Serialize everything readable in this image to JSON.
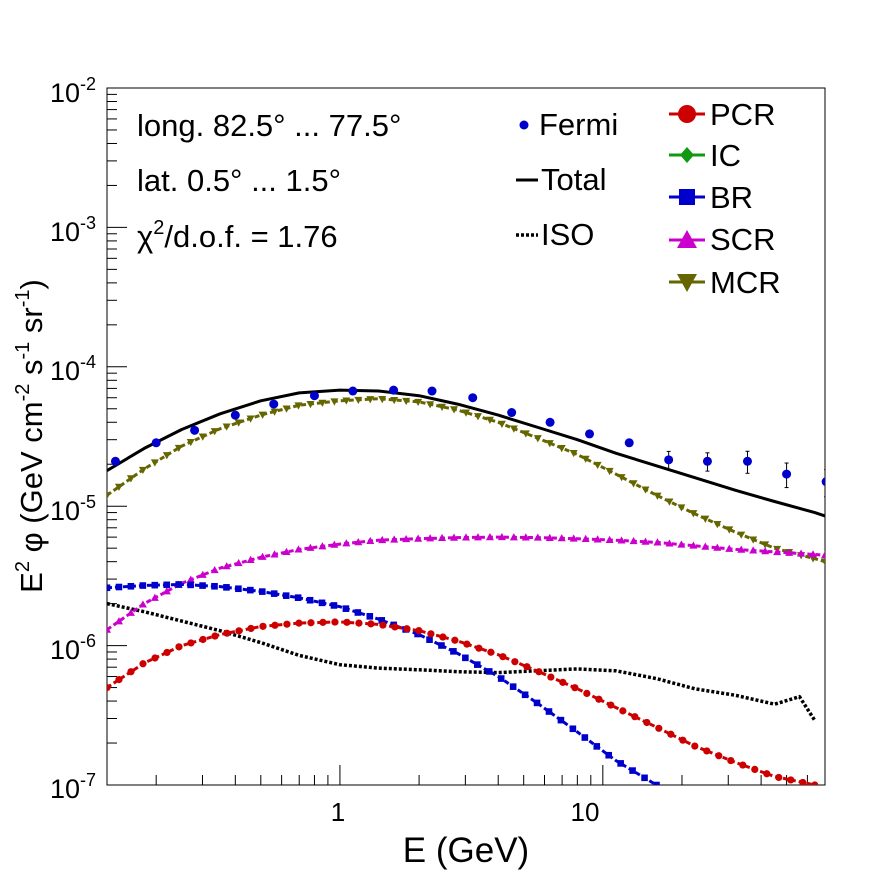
{
  "chart_data": {
    "type": "line",
    "xscale": "log",
    "yscale": "log",
    "xlim": [
      0.13,
      70
    ],
    "ylim": [
      1e-07,
      0.01
    ],
    "xlabel": "E (GeV)",
    "ylabel_parts": {
      "e": "E",
      "sup2": "2",
      "phi": " φ (GeV cm",
      "sup_m2": "-2",
      "s": " s",
      "sup_m1a": "-1",
      "sr": " sr",
      "sup_m1b": "-1",
      "close": ")"
    },
    "x_tick_labels": [
      {
        "value": 1,
        "label": "1"
      },
      {
        "value": 10,
        "label": "10"
      }
    ],
    "y_tick_labels": [
      {
        "value": 1e-07,
        "base": "10",
        "exp": "-7"
      },
      {
        "value": 1e-06,
        "base": "10",
        "exp": "-6"
      },
      {
        "value": 1e-05,
        "base": "10",
        "exp": "-5"
      },
      {
        "value": 0.0001,
        "base": "10",
        "exp": "-4"
      },
      {
        "value": 0.001,
        "base": "10",
        "exp": "-3"
      },
      {
        "value": 0.01,
        "base": "10",
        "exp": "-2"
      }
    ],
    "annotations": {
      "longitude": "long. 82.5° ... 77.5°",
      "latitude": "lat. 0.5° ... 1.5°",
      "chi_base": "χ",
      "chi_sup": "2",
      "chi_rest": "/d.o.f. = 1.76"
    },
    "legend_left": [
      {
        "key": "fermi",
        "label": "Fermi",
        "color": "#0000cc"
      },
      {
        "key": "total",
        "label": "Total",
        "color": "#000000"
      },
      {
        "key": "iso",
        "label": "ISO",
        "color": "#000000"
      }
    ],
    "legend_right": [
      {
        "key": "pcr",
        "label": "PCR",
        "color": "#cc0000"
      },
      {
        "key": "ic",
        "label": "IC",
        "color": "#119911"
      },
      {
        "key": "br",
        "label": "BR",
        "color": "#0000cc"
      },
      {
        "key": "scr",
        "label": "SCR",
        "color": "#cc00cc"
      },
      {
        "key": "mcr",
        "label": "MCR",
        "color": "#666600"
      }
    ],
    "series": [
      {
        "name": "Total",
        "key": "total",
        "color": "#000000",
        "style": "solid",
        "x": [
          0.13,
          0.18,
          0.25,
          0.35,
          0.5,
          0.7,
          1.0,
          1.4,
          2.0,
          2.8,
          4.0,
          5.6,
          8.0,
          11.2,
          16,
          22.4,
          32,
          45,
          64,
          70
        ],
        "y": [
          1.8e-05,
          2.6e-05,
          3.55e-05,
          4.6e-05,
          5.7e-05,
          6.5e-05,
          6.8e-05,
          6.7e-05,
          6.2e-05,
          5.4e-05,
          4.5e-05,
          3.7e-05,
          3e-05,
          2.4e-05,
          1.95e-05,
          1.6e-05,
          1.3e-05,
          1.08e-05,
          9e-06,
          8.5e-06
        ]
      },
      {
        "name": "ISO",
        "key": "iso",
        "color": "#000000",
        "style": "dotted",
        "x": [
          0.13,
          0.18,
          0.25,
          0.35,
          0.5,
          0.7,
          1.0,
          1.4,
          2.0,
          2.8,
          4.0,
          5.6,
          8.0,
          11.2,
          16,
          22.4,
          32,
          45,
          56,
          64
        ],
        "y": [
          2e-06,
          1.75e-06,
          1.5e-06,
          1.28e-06,
          1.05e-06,
          8.5e-07,
          7.3e-07,
          6.9e-07,
          6.7e-07,
          6.5e-07,
          6.4e-07,
          6.6e-07,
          6.8e-07,
          6.6e-07,
          5.8e-07,
          4.9e-07,
          4.4e-07,
          3.8e-07,
          4.3e-07,
          2.9e-07
        ]
      },
      {
        "name": "MCR",
        "key": "mcr",
        "color": "#666600",
        "style": "dashed",
        "x": [
          0.13,
          0.18,
          0.25,
          0.35,
          0.5,
          0.7,
          1.0,
          1.4,
          2.0,
          2.8,
          4.0,
          5.6,
          8.0,
          11.2,
          16,
          22.4,
          32,
          45,
          64,
          70
        ],
        "y": [
          1.2e-05,
          1.85e-05,
          2.7e-05,
          3.6e-05,
          4.5e-05,
          5.3e-05,
          5.7e-05,
          5.9e-05,
          5.6e-05,
          4.9e-05,
          4e-05,
          3.1e-05,
          2.35e-05,
          1.7e-05,
          1.2e-05,
          8.8e-06,
          6.5e-06,
          5e-06,
          4.2e-06,
          4e-06
        ]
      },
      {
        "name": "SCR",
        "key": "scr",
        "color": "#cc00cc",
        "style": "dashed",
        "x": [
          0.13,
          0.18,
          0.25,
          0.35,
          0.5,
          0.7,
          1.0,
          1.4,
          2.0,
          2.8,
          4.0,
          5.6,
          8.0,
          11.2,
          16,
          22.4,
          32,
          45,
          64,
          70
        ],
        "y": [
          1.3e-06,
          2e-06,
          2.8e-06,
          3.6e-06,
          4.3e-06,
          4.9e-06,
          5.35e-06,
          5.7e-06,
          5.85e-06,
          5.95e-06,
          6e-06,
          5.95e-06,
          5.85e-06,
          5.7e-06,
          5.5e-06,
          5.2e-06,
          4.9e-06,
          4.7e-06,
          4.5e-06,
          4.45e-06
        ]
      },
      {
        "name": "BR",
        "key": "br",
        "color": "#0000cc",
        "style": "dashed",
        "x": [
          0.13,
          0.18,
          0.25,
          0.35,
          0.5,
          0.7,
          1.0,
          1.4,
          2.0,
          2.8,
          4.0,
          5.6,
          8.0,
          11.2,
          16
        ],
        "y": [
          2.6e-06,
          2.7e-06,
          2.75e-06,
          2.65e-06,
          2.45e-06,
          2.2e-06,
          1.9e-06,
          1.55e-06,
          1.2e-06,
          8.8e-07,
          6e-07,
          3.9e-07,
          2.4e-07,
          1.5e-07,
          1e-07
        ]
      },
      {
        "name": "PCR",
        "key": "pcr",
        "color": "#cc0000",
        "style": "dashed",
        "x": [
          0.13,
          0.18,
          0.25,
          0.35,
          0.5,
          0.7,
          1.0,
          1.4,
          2.0,
          2.8,
          4.0,
          5.6,
          8.0,
          11.2,
          16,
          22.4,
          32,
          45,
          64
        ],
        "y": [
          5e-07,
          7.5e-07,
          1e-06,
          1.2e-06,
          1.37e-06,
          1.45e-06,
          1.48e-06,
          1.42e-06,
          1.28e-06,
          1.08e-06,
          8.6e-07,
          6.6e-07,
          4.9e-07,
          3.6e-07,
          2.6e-07,
          1.9e-07,
          1.45e-07,
          1.15e-07,
          1e-07
        ]
      },
      {
        "name": "Fermi",
        "key": "fermi",
        "color": "#0000cc",
        "style": "points",
        "x": [
          0.14,
          0.2,
          0.28,
          0.4,
          0.56,
          0.8,
          1.12,
          1.6,
          2.24,
          3.2,
          4.5,
          6.3,
          8.9,
          12.6,
          17.8,
          25,
          35.5,
          50,
          70.7,
          100
        ],
        "y": [
          2.1e-05,
          2.85e-05,
          3.5e-05,
          4.5e-05,
          5.4e-05,
          6.2e-05,
          6.7e-05,
          6.8e-05,
          6.7e-05,
          6e-05,
          4.7e-05,
          4e-05,
          3.3e-05,
          2.85e-05,
          2.15e-05,
          2.1e-05,
          2.1e-05,
          1.7e-05,
          1.5e-05,
          1.55e-05
        ],
        "err": [
          0,
          0,
          0,
          0,
          0,
          0,
          0,
          0,
          0,
          0,
          0,
          0,
          0,
          0,
          0.15,
          0.15,
          0.18,
          0.2,
          0.22,
          0.25
        ]
      }
    ]
  }
}
